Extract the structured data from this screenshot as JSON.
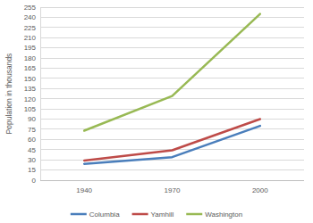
{
  "chart_data": {
    "type": "line",
    "y_label": "Population in thousands",
    "categories": [
      "1940",
      "1970",
      "2000"
    ],
    "series": [
      {
        "name": "Columbia",
        "color": "#4a7ebb",
        "values": [
          24,
          34,
          80
        ]
      },
      {
        "name": "Yamhill",
        "color": "#be4b48",
        "values": [
          29,
          44,
          90
        ]
      },
      {
        "name": "Washington",
        "color": "#98b954",
        "values": [
          73,
          124,
          245
        ]
      }
    ],
    "ylim": [
      0,
      255
    ],
    "yticks": [
      0,
      15,
      30,
      45,
      60,
      75,
      90,
      105,
      120,
      135,
      150,
      165,
      180,
      195,
      210,
      225,
      240,
      255
    ],
    "grid": true,
    "legend": "bottom"
  }
}
